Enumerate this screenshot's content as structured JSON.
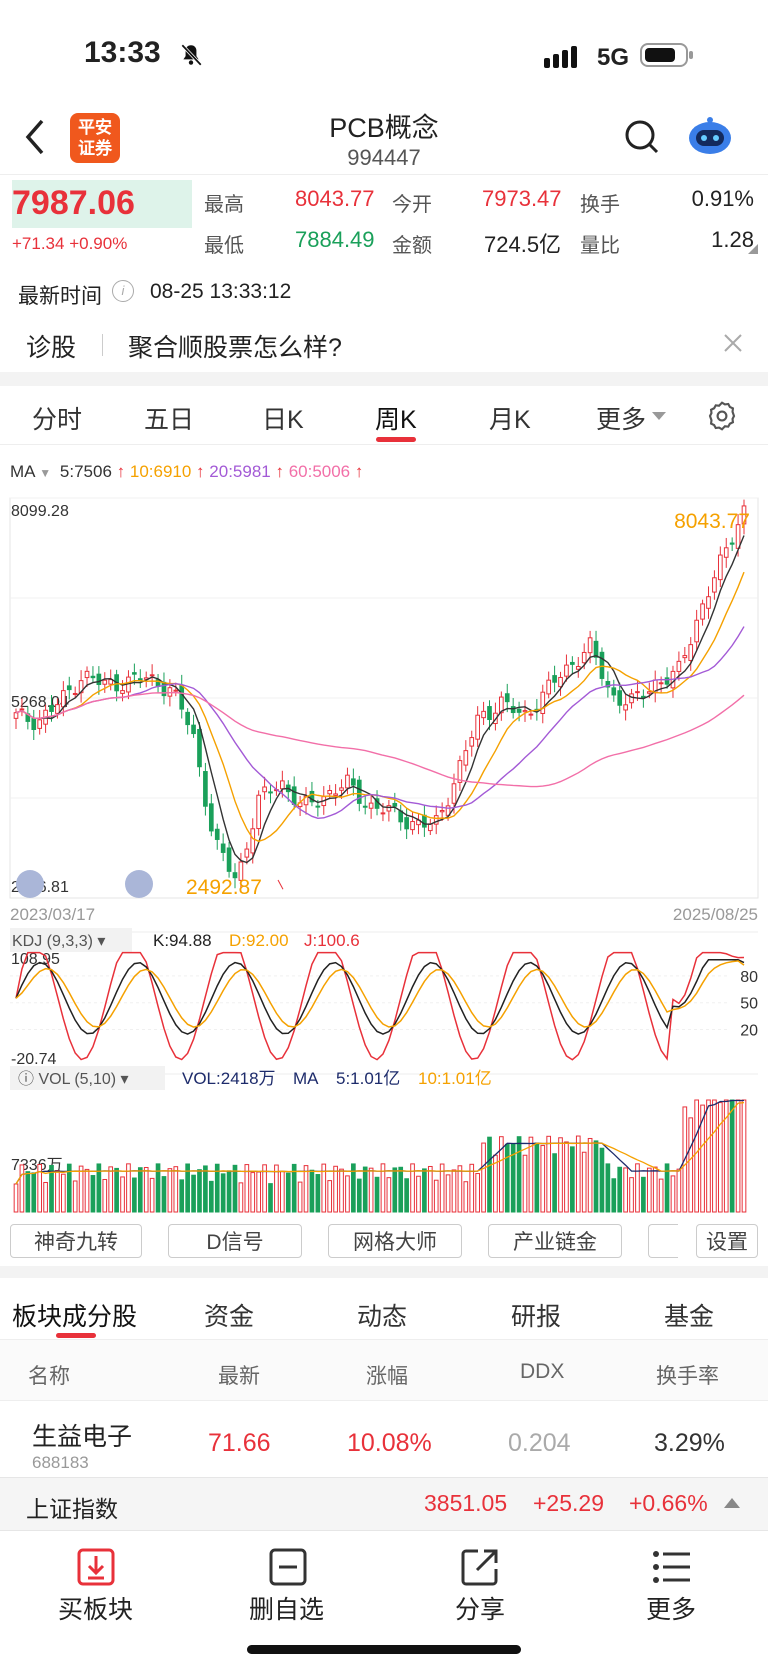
{
  "status": {
    "time": "13:33",
    "network": "5G"
  },
  "header": {
    "title": "PCB概念",
    "code": "994447",
    "broker_logo": "平安\n证券"
  },
  "quote": {
    "price": "7987.06",
    "change": "+71.34 +0.90%",
    "high_label": "最高",
    "high": "8043.77",
    "open_label": "今开",
    "open": "7973.47",
    "turnover_label": "换手",
    "turnover": "0.91%",
    "low_label": "最低",
    "low": "7884.49",
    "amount_label": "金额",
    "amount": "724.5亿",
    "ratio_label": "量比",
    "ratio": "1.28"
  },
  "update": {
    "label": "最新时间",
    "value": "08-25 13:33:12"
  },
  "diagnose": {
    "label": "诊股",
    "text": "聚合顺股票怎么样?"
  },
  "chart_tabs": [
    "分时",
    "五日",
    "日K",
    "周K",
    "月K",
    "更多"
  ],
  "ma": {
    "label": "MA",
    "ma5": "5:7506",
    "ma10": "10:6910",
    "ma20": "20:5981",
    "ma60": "60:5006"
  },
  "chart_data": [
    {
      "type": "candlestick",
      "title": "",
      "y_ticks": [
        "8099.28",
        "5268.04",
        "2436.81"
      ],
      "ylim": [
        2436.81,
        8099.28
      ],
      "x_range": [
        "2023/03/17",
        "2025/08/25"
      ],
      "max_label": "8043.77",
      "min_label": "2492.87",
      "close_anchors": [
        5000,
        4950,
        5200,
        5600,
        5450,
        5500,
        5550,
        5400,
        4800,
        3200,
        2700,
        3800,
        4100,
        3700,
        3900,
        4050,
        3750,
        3650,
        3500,
        3450,
        4200,
        5000,
        5200,
        5000,
        5350,
        5700,
        6000,
        5300,
        5200,
        5500,
        5600,
        6500,
        7200,
        7987
      ]
    },
    {
      "type": "line",
      "title": "KDJ (9,3,3)",
      "series": [
        {
          "name": "K",
          "last": "94.88"
        },
        {
          "name": "D",
          "last": "92.00"
        },
        {
          "name": "J",
          "last": "100.6"
        }
      ],
      "y_ticks": [
        "108.95",
        "80",
        "50",
        "20",
        "-20.74"
      ],
      "ylim": [
        -20.74,
        108.95
      ]
    },
    {
      "type": "bar",
      "title": "VOL (5,10)",
      "vol": "VOL:2418万",
      "ma5": "5:1.01亿",
      "ma10": "10:1.01亿",
      "y_tick": "7336万"
    }
  ],
  "tools": [
    "神奇九转",
    "D信号",
    "网格大师",
    "产业链金",
    "设置"
  ],
  "section_tabs": [
    "板块成分股",
    "资金",
    "动态",
    "研报",
    "基金"
  ],
  "table": {
    "headers": [
      "名称",
      "最新",
      "涨幅",
      "DDX",
      "换手率"
    ],
    "rows": [
      {
        "name": "生益电子",
        "code": "688183",
        "price": "71.66",
        "change": "10.08%",
        "ddx": "0.204",
        "turnover": "3.29%"
      }
    ]
  },
  "index_bar": {
    "name": "上证指数",
    "value": "3851.05",
    "change": "+25.29",
    "pct": "+0.66%"
  },
  "bottom_nav": [
    "买板块",
    "删自选",
    "分享",
    "更多"
  ],
  "colors": {
    "up": "#e8313a",
    "down": "#1aa05a",
    "accent": "#f5a100"
  }
}
